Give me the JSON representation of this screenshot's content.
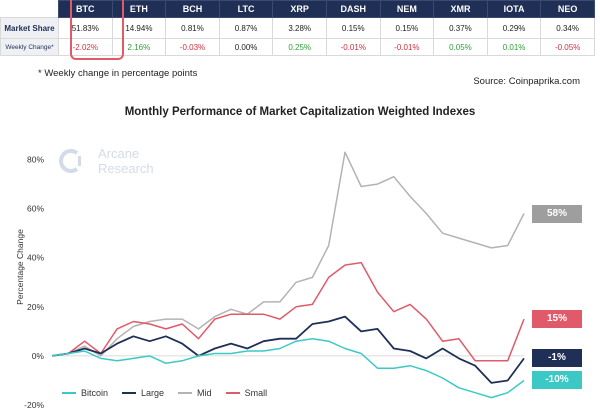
{
  "table": {
    "coins": [
      "BTC",
      "ETH",
      "BCH",
      "LTC",
      "XRP",
      "DASH",
      "NEM",
      "XMR",
      "IOTA",
      "NEO"
    ],
    "rows": [
      {
        "label": "Market Share",
        "values": [
          "51.83%",
          "14.94%",
          "0.81%",
          "0.87%",
          "3.28%",
          "0.15%",
          "0.15%",
          "0.37%",
          "0.29%",
          "0.34%"
        ]
      },
      {
        "label": "Weekly Change*",
        "values": [
          "-2.02%",
          "2.16%",
          "-0.03%",
          "0.00%",
          "0.25%",
          "-0.01%",
          "-0.01%",
          "0.05%",
          "0.01%",
          "-0.05%"
        ]
      }
    ],
    "footnote": "* Weekly change in percentage points",
    "source": "Source: Coinpaprika.com"
  },
  "watermark": {
    "line1": "Arcane",
    "line2": "Research"
  },
  "colors": {
    "header_bg": "#1f2f55",
    "bitcoin": "#3cc9c6",
    "large": "#1f2f55",
    "mid": "#b3b3b3",
    "small": "#e05a6a",
    "positive": "#2e9e3a",
    "negative": "#d0313e"
  },
  "chart_data": {
    "type": "line",
    "title": "Monthly Performance of Market Capitalization Weighted Indexes",
    "ylabel": "Percentage Change",
    "xlabel": "",
    "ylim": [
      -20,
      90
    ],
    "yticks": [
      -20,
      0,
      20,
      40,
      60,
      80
    ],
    "ytick_labels": [
      "-20%",
      "0%",
      "20%",
      "40%",
      "60%",
      "80%"
    ],
    "grid": false,
    "legend": "bottom-left",
    "end_labels": [
      {
        "series": "Mid",
        "text": "58%"
      },
      {
        "series": "Small",
        "text": "15%"
      },
      {
        "series": "Large",
        "text": "-1%"
      },
      {
        "series": "Bitcoin",
        "text": "-10%"
      }
    ],
    "series": [
      {
        "name": "Bitcoin",
        "values": [
          0,
          1,
          2,
          -1,
          -2,
          -1,
          0,
          -3,
          -2,
          0,
          1,
          1,
          2,
          2,
          3,
          6,
          7,
          6,
          3,
          1,
          -5,
          -5,
          -4,
          -6,
          -9,
          -13,
          -15,
          -17,
          -15,
          -10
        ]
      },
      {
        "name": "Large",
        "values": [
          0,
          1,
          3,
          1,
          5,
          8,
          6,
          8,
          5,
          0,
          3,
          5,
          3,
          6,
          7,
          7,
          13,
          14,
          16,
          10,
          11,
          3,
          2,
          -1,
          3,
          -1,
          -4,
          -11,
          -10,
          -1
        ]
      },
      {
        "name": "Mid",
        "values": [
          0,
          1,
          4,
          0,
          7,
          12,
          14,
          15,
          15,
          11,
          16,
          19,
          17,
          22,
          22,
          30,
          32,
          45,
          83,
          69,
          70,
          73,
          65,
          58,
          50,
          48,
          46,
          44,
          45,
          58
        ]
      },
      {
        "name": "Small",
        "values": [
          0,
          1,
          6,
          1,
          11,
          14,
          13,
          11,
          13,
          7,
          15,
          17,
          17,
          17,
          15,
          20,
          21,
          32,
          37,
          38,
          26,
          18,
          21,
          15,
          6,
          7,
          -2,
          -2,
          -2,
          15
        ]
      }
    ]
  }
}
